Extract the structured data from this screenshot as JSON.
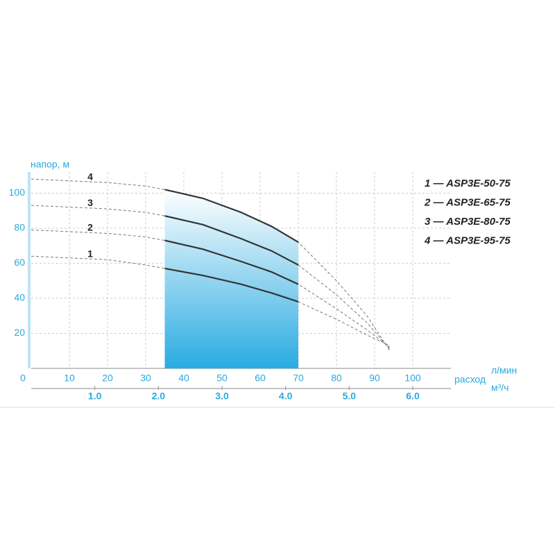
{
  "chart_data": {
    "type": "line",
    "y_label": "напор, м",
    "x_label": "расход",
    "x_unit": "л/мин",
    "x2_unit": "м³/ч",
    "x": [
      0,
      10,
      20,
      30,
      35,
      45,
      55,
      63,
      70,
      80,
      88,
      94
    ],
    "operating_range": [
      35,
      70
    ],
    "series": [
      {
        "name": "1 — ASP3E-50-75",
        "label": "1",
        "color": "#333333",
        "values": [
          64,
          63,
          62,
          59,
          57,
          53,
          48,
          43,
          38,
          28,
          19,
          13
        ]
      },
      {
        "name": "2 — ASP3E-65-75",
        "label": "2",
        "color": "#333333",
        "values": [
          79,
          78,
          77,
          75,
          73,
          68,
          61,
          55,
          48,
          34,
          22,
          12
        ]
      },
      {
        "name": "3 — ASP3E-80-75",
        "label": "3",
        "color": "#333333",
        "values": [
          93,
          92,
          91,
          89,
          87,
          82,
          74,
          67,
          59,
          42,
          26,
          11
        ]
      },
      {
        "name": "4 — ASP3E-95-75",
        "label": "4",
        "color": "#333333",
        "values": [
          108,
          107,
          106,
          104,
          102,
          97,
          89,
          81,
          72,
          50,
          30,
          10
        ]
      }
    ],
    "xlim": [
      0,
      110
    ],
    "xticks": [
      0,
      10,
      20,
      30,
      40,
      50,
      60,
      70,
      80,
      90,
      100
    ],
    "x2lim": [
      0,
      6.6
    ],
    "x2ticks": [
      {
        "value": 1,
        "label": "1.0"
      },
      {
        "value": 2,
        "label": "2.0"
      },
      {
        "value": 3,
        "label": "3.0"
      },
      {
        "value": 4,
        "label": "4.0"
      },
      {
        "value": 5,
        "label": "5.0"
      },
      {
        "value": 6,
        "label": "6.0"
      }
    ],
    "ylim": [
      0,
      112
    ],
    "yticks": [
      20,
      40,
      60,
      80,
      100
    ],
    "grid": true,
    "area_color": "#29abe2"
  }
}
